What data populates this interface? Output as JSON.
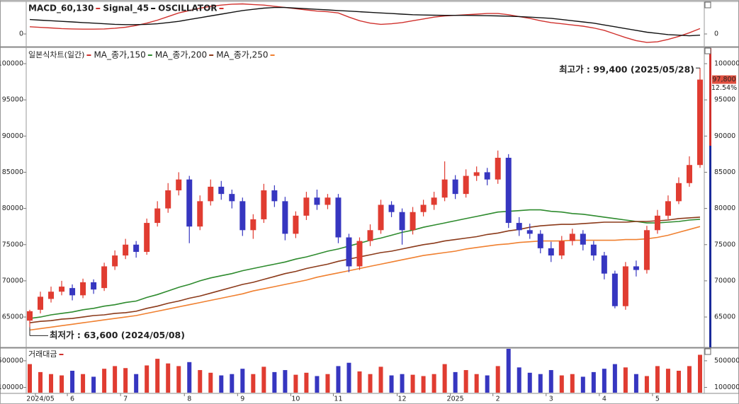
{
  "chart_data": [
    {
      "type": "line",
      "series": [
        {
          "name": "MACD_60,130",
          "color": "#d0312d",
          "values": [
            600,
            550,
            500,
            450,
            420,
            400,
            400,
            420,
            480,
            560,
            700,
            900,
            1150,
            1450,
            1750,
            1950,
            2150,
            2300,
            2400,
            2480,
            2500,
            2450,
            2400,
            2300,
            2200,
            2100,
            2000,
            1900,
            1850,
            1750,
            1400,
            1100,
            900,
            800,
            850,
            950,
            1100,
            1250,
            1400,
            1500,
            1550,
            1600,
            1650,
            1700,
            1700,
            1600,
            1450,
            1300,
            1100,
            950,
            850,
            750,
            650,
            500,
            300,
            0,
            -300,
            -550,
            -700,
            -650,
            -450,
            -200,
            100,
            450
          ]
        },
        {
          "name": "Signal_45",
          "color": "#111111",
          "values": [
            1200,
            1150,
            1100,
            1050,
            1000,
            950,
            900,
            850,
            800,
            780,
            780,
            800,
            850,
            950,
            1050,
            1200,
            1350,
            1500,
            1650,
            1800,
            1950,
            2050,
            2150,
            2200,
            2200,
            2150,
            2100,
            2050,
            2000,
            1950,
            1900,
            1850,
            1800,
            1750,
            1700,
            1650,
            1600,
            1580,
            1560,
            1550,
            1550,
            1550,
            1540,
            1520,
            1500,
            1480,
            1450,
            1400,
            1350,
            1300,
            1200,
            1100,
            1000,
            900,
            750,
            600,
            450,
            300,
            150,
            50,
            -50,
            -100,
            -150,
            -100
          ]
        }
      ],
      "extra_legend": "OSCILLATOR",
      "ylim": [
        -1000,
        2650
      ],
      "yticks": [
        0
      ]
    },
    {
      "type": "candlestick",
      "title": "일본식차트(일간)",
      "categories": [
        null,
        "2024/05",
        null,
        null,
        "6",
        null,
        null,
        null,
        null,
        "7",
        null,
        null,
        null,
        null,
        null,
        "8",
        null,
        null,
        null,
        null,
        "9",
        null,
        null,
        null,
        null,
        "10",
        null,
        null,
        null,
        "11",
        null,
        null,
        null,
        null,
        null,
        "12",
        null,
        null,
        null,
        null,
        "2025",
        null,
        null,
        null,
        "2",
        null,
        null,
        null,
        null,
        "3",
        null,
        null,
        null,
        null,
        "4",
        null,
        null,
        null,
        null,
        "5",
        null,
        null,
        null,
        null
      ],
      "open": [
        64500,
        66000,
        67500,
        68500,
        69000,
        68000,
        69800,
        69000,
        72000,
        73500,
        75000,
        74000,
        78000,
        80000,
        82500,
        84000,
        77500,
        81000,
        83000,
        82000,
        81000,
        77000,
        78500,
        82500,
        81000,
        76500,
        79000,
        81500,
        80500,
        81500,
        76000,
        72000,
        75500,
        77000,
        80500,
        79500,
        77000,
        79500,
        80500,
        81500,
        84000,
        82000,
        84500,
        85000,
        84000,
        87000,
        78000,
        77000,
        76500,
        74500,
        73500,
        75500,
        76500,
        75000,
        73500,
        71000,
        66500,
        72000,
        71500,
        77000,
        79000,
        81000,
        83500,
        86000
      ],
      "high": [
        66000,
        68500,
        69200,
        70000,
        69500,
        70300,
        70200,
        72500,
        74200,
        75800,
        75500,
        78600,
        81000,
        83500,
        85000,
        84500,
        81800,
        84000,
        83800,
        82600,
        81500,
        79200,
        83400,
        83200,
        81600,
        79600,
        82300,
        82600,
        82000,
        82000,
        76500,
        76000,
        77800,
        81200,
        81000,
        80000,
        80200,
        81200,
        82300,
        86500,
        84600,
        85400,
        85800,
        85600,
        88000,
        87500,
        78800,
        77900,
        77000,
        75400,
        76200,
        77200,
        77000,
        75500,
        74000,
        71400,
        72600,
        72800,
        77600,
        79800,
        81800,
        84300,
        87200,
        99400
      ],
      "low": [
        63600,
        65500,
        67000,
        68000,
        67300,
        67600,
        68200,
        68600,
        71500,
        73000,
        73200,
        73600,
        77500,
        79400,
        81800,
        75200,
        77000,
        80400,
        81200,
        80000,
        76200,
        75800,
        78000,
        80200,
        75600,
        75900,
        78400,
        79800,
        79900,
        75200,
        71200,
        71500,
        74800,
        76500,
        78800,
        75000,
        76400,
        78900,
        79800,
        81000,
        81300,
        81500,
        83800,
        83200,
        83400,
        77300,
        76200,
        75800,
        73800,
        72600,
        73000,
        74900,
        74200,
        72800,
        70200,
        66200,
        66000,
        70600,
        71000,
        76500,
        78500,
        80600,
        83000,
        85600
      ],
      "close": [
        65800,
        67800,
        68500,
        69200,
        68000,
        69800,
        68800,
        72000,
        73500,
        75000,
        74000,
        78000,
        80000,
        82500,
        84000,
        77500,
        81000,
        83000,
        82000,
        81000,
        77000,
        78500,
        82500,
        81000,
        76500,
        79000,
        81500,
        80500,
        81500,
        76000,
        72000,
        75500,
        77000,
        80500,
        79500,
        77000,
        79500,
        80500,
        81500,
        84000,
        82000,
        84500,
        85000,
        84000,
        87000,
        78000,
        77000,
        76500,
        74500,
        73500,
        75500,
        76500,
        75000,
        73500,
        71000,
        66500,
        72000,
        71500,
        77000,
        79000,
        81000,
        83500,
        86000,
        97800
      ],
      "up_color": "#e03c31",
      "down_color": "#3636c0",
      "series": [
        {
          "name": "MA_종가,150",
          "color": "#2e8b2e",
          "values": [
            64800,
            65000,
            65300,
            65500,
            65700,
            66000,
            66200,
            66500,
            66700,
            67000,
            67200,
            67700,
            68100,
            68600,
            69100,
            69500,
            70000,
            70400,
            70700,
            71000,
            71400,
            71700,
            72000,
            72300,
            72600,
            73000,
            73300,
            73700,
            74100,
            74400,
            74800,
            75200,
            75600,
            75900,
            76300,
            76700,
            77000,
            77400,
            77700,
            78000,
            78300,
            78600,
            78900,
            79200,
            79500,
            79600,
            79700,
            79800,
            79800,
            79600,
            79500,
            79300,
            79200,
            79000,
            78800,
            78600,
            78400,
            78200,
            78000,
            78000,
            78100,
            78200,
            78400,
            78500
          ]
        },
        {
          "name": "MA_종가,200",
          "color": "#8b3a1a",
          "values": [
            64200,
            64400,
            64500,
            64700,
            64800,
            65000,
            65200,
            65300,
            65500,
            65600,
            65800,
            66200,
            66500,
            66900,
            67200,
            67600,
            67900,
            68300,
            68700,
            69100,
            69500,
            69800,
            70200,
            70600,
            71000,
            71300,
            71700,
            72000,
            72300,
            72700,
            73000,
            73300,
            73600,
            73900,
            74100,
            74400,
            74700,
            75000,
            75200,
            75500,
            75700,
            75900,
            76100,
            76400,
            76600,
            76900,
            77100,
            77400,
            77600,
            77700,
            77800,
            77800,
            77900,
            78000,
            78100,
            78100,
            78100,
            78200,
            78200,
            78300,
            78400,
            78600,
            78700,
            78800
          ]
        },
        {
          "name": "MA_종가,250",
          "color": "#f08030",
          "values": [
            63200,
            63400,
            63600,
            63800,
            64000,
            64200,
            64400,
            64600,
            64800,
            65000,
            65200,
            65500,
            65800,
            66100,
            66400,
            66700,
            67000,
            67300,
            67600,
            67900,
            68200,
            68600,
            68900,
            69200,
            69500,
            69800,
            70100,
            70500,
            70800,
            71100,
            71400,
            71700,
            72000,
            72300,
            72600,
            72900,
            73200,
            73500,
            73700,
            73900,
            74100,
            74400,
            74600,
            74800,
            75000,
            75100,
            75300,
            75400,
            75500,
            75500,
            75500,
            75600,
            75600,
            75600,
            75600,
            75600,
            75700,
            75700,
            75800,
            76000,
            76300,
            76700,
            77100,
            77500
          ]
        }
      ],
      "high_label": "최고가 : 99,400 (2025/05/28)",
      "low_label": "최저가 : 63,600 (2024/05/08)",
      "last_label": "97,800",
      "change_label": "12.54%",
      "ylim": [
        60900,
        102150
      ],
      "yticks": [
        65000,
        70000,
        75000,
        80000,
        85000,
        90000,
        95000,
        100000
      ]
    },
    {
      "type": "bar",
      "title": "거래대금",
      "values": [
        450000,
        330000,
        300000,
        280000,
        350000,
        300000,
        260000,
        380000,
        420000,
        390000,
        300000,
        430000,
        530000,
        460000,
        420000,
        480000,
        360000,
        320000,
        280000,
        300000,
        380000,
        300000,
        410000,
        330000,
        360000,
        290000,
        320000,
        270000,
        300000,
        420000,
        470000,
        340000,
        300000,
        410000,
        280000,
        300000,
        290000,
        270000,
        300000,
        450000,
        330000,
        360000,
        300000,
        280000,
        420000,
        680000,
        400000,
        320000,
        300000,
        360000,
        280000,
        300000,
        260000,
        330000,
        380000,
        450000,
        400000,
        300000,
        270000,
        420000,
        380000,
        350000,
        420000,
        590000
      ],
      "ylim": [
        20000,
        680000
      ],
      "yticks": [
        100000,
        500000
      ]
    }
  ]
}
